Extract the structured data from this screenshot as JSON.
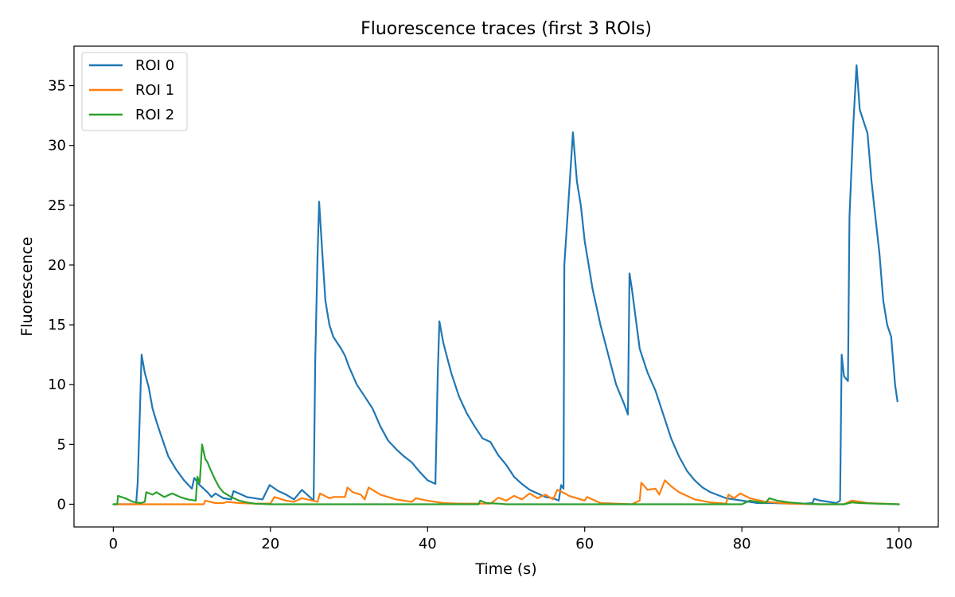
{
  "chart_data": {
    "type": "line",
    "title": "Fluorescence traces (first 3 ROIs)",
    "xlabel": "Time (s)",
    "ylabel": "Fluorescence",
    "xlim": [
      -5,
      105
    ],
    "ylim": [
      -1.9,
      38.3
    ],
    "xticks": [
      0,
      20,
      40,
      60,
      80,
      100
    ],
    "yticks": [
      0,
      5,
      10,
      15,
      20,
      25,
      30,
      35
    ],
    "grid": false,
    "legend_position": "top-left",
    "series": [
      {
        "name": "ROI 0",
        "color": "#1f77b4",
        "points": [
          [
            0,
            0
          ],
          [
            2.9,
            0
          ],
          [
            3.1,
            1.8
          ],
          [
            3.4,
            8
          ],
          [
            3.6,
            12.5
          ],
          [
            4,
            11
          ],
          [
            4.5,
            9.8
          ],
          [
            5,
            8
          ],
          [
            5.5,
            6.9
          ],
          [
            6,
            5.9
          ],
          [
            7,
            4
          ],
          [
            8,
            2.9
          ],
          [
            9,
            2
          ],
          [
            10,
            1.3
          ],
          [
            10.3,
            2.2
          ],
          [
            11,
            1.6
          ],
          [
            12,
            1.0
          ],
          [
            12.5,
            0.6
          ],
          [
            13,
            0.9
          ],
          [
            14,
            0.5
          ],
          [
            15,
            0.4
          ],
          [
            15.3,
            1.1
          ],
          [
            17,
            0.6
          ],
          [
            19,
            0.4
          ],
          [
            19.9,
            1.6
          ],
          [
            21,
            1.1
          ],
          [
            22,
            0.8
          ],
          [
            23,
            0.4
          ],
          [
            24,
            1.2
          ],
          [
            25,
            0.6
          ],
          [
            25.5,
            0.3
          ],
          [
            25.7,
            12
          ],
          [
            26,
            21
          ],
          [
            26.2,
            25.3
          ],
          [
            26.6,
            21
          ],
          [
            27,
            17
          ],
          [
            27.5,
            15
          ],
          [
            28,
            14
          ],
          [
            28.5,
            13.5
          ],
          [
            29,
            13
          ],
          [
            29.5,
            12.4
          ],
          [
            30,
            11.5
          ],
          [
            31,
            10
          ],
          [
            32,
            9
          ],
          [
            33,
            8
          ],
          [
            34,
            6.5
          ],
          [
            35,
            5.3
          ],
          [
            36,
            4.6
          ],
          [
            37,
            4.0
          ],
          [
            38,
            3.5
          ],
          [
            39,
            2.7
          ],
          [
            40,
            2.0
          ],
          [
            41,
            1.7
          ],
          [
            41.3,
            11
          ],
          [
            41.5,
            15.3
          ],
          [
            42,
            13.5
          ],
          [
            43,
            11
          ],
          [
            44,
            9
          ],
          [
            45,
            7.6
          ],
          [
            46,
            6.5
          ],
          [
            47,
            5.5
          ],
          [
            48,
            5.2
          ],
          [
            49,
            4.1
          ],
          [
            50,
            3.3
          ],
          [
            51,
            2.3
          ],
          [
            52,
            1.7
          ],
          [
            53,
            1.2
          ],
          [
            54,
            0.9
          ],
          [
            55,
            0.6
          ],
          [
            56,
            0.5
          ],
          [
            56.7,
            0.3
          ],
          [
            57,
            1.6
          ],
          [
            57.3,
            1.3
          ],
          [
            57.4,
            20
          ],
          [
            58,
            26
          ],
          [
            58.5,
            31.1
          ],
          [
            59,
            27
          ],
          [
            59.5,
            25
          ],
          [
            60,
            22
          ],
          [
            60.5,
            20
          ],
          [
            61,
            18
          ],
          [
            62,
            15
          ],
          [
            63,
            12.5
          ],
          [
            64,
            10
          ],
          [
            65,
            8.4
          ],
          [
            65.5,
            7.5
          ],
          [
            65.7,
            19.3
          ],
          [
            66,
            18
          ],
          [
            66.5,
            15.5
          ],
          [
            67,
            13
          ],
          [
            68,
            11
          ],
          [
            69,
            9.5
          ],
          [
            70,
            7.5
          ],
          [
            71,
            5.5
          ],
          [
            72,
            4
          ],
          [
            73,
            2.8
          ],
          [
            74,
            2
          ],
          [
            75,
            1.4
          ],
          [
            76,
            1.0
          ],
          [
            78,
            0.5
          ],
          [
            80,
            0.3
          ],
          [
            82,
            0.1
          ],
          [
            84,
            0.1
          ],
          [
            86,
            0.05
          ],
          [
            88,
            0.05
          ],
          [
            89,
            0.1
          ],
          [
            89.2,
            0.45
          ],
          [
            90,
            0.3
          ],
          [
            91,
            0.2
          ],
          [
            92,
            0.1
          ],
          [
            92.5,
            0.3
          ],
          [
            92.7,
            12.5
          ],
          [
            93,
            10.7
          ],
          [
            93.5,
            10.3
          ],
          [
            93.7,
            24
          ],
          [
            94.2,
            32
          ],
          [
            94.6,
            36.7
          ],
          [
            95,
            33
          ],
          [
            96,
            31
          ],
          [
            96.5,
            27
          ],
          [
            97,
            24
          ],
          [
            97.5,
            21
          ],
          [
            98,
            17
          ],
          [
            98.5,
            15
          ],
          [
            99,
            14
          ],
          [
            99.5,
            10
          ],
          [
            99.8,
            8.6
          ]
        ]
      },
      {
        "name": "ROI 1",
        "color": "#ff7f0e",
        "points": [
          [
            0,
            0
          ],
          [
            11.5,
            0
          ],
          [
            11.7,
            0.3
          ],
          [
            13,
            0.1
          ],
          [
            14,
            0.1
          ],
          [
            14.5,
            0.2
          ],
          [
            16,
            0.1
          ],
          [
            18,
            0.05
          ],
          [
            20,
            0.05
          ],
          [
            20.5,
            0.6
          ],
          [
            22,
            0.3
          ],
          [
            23,
            0.2
          ],
          [
            24,
            0.5
          ],
          [
            26,
            0.2
          ],
          [
            26.3,
            0.9
          ],
          [
            27.5,
            0.5
          ],
          [
            28,
            0.6
          ],
          [
            29.5,
            0.6
          ],
          [
            29.8,
            1.4
          ],
          [
            30.5,
            1.0
          ],
          [
            31.5,
            0.8
          ],
          [
            32,
            0.4
          ],
          [
            32.5,
            1.4
          ],
          [
            34,
            0.8
          ],
          [
            36,
            0.4
          ],
          [
            38,
            0.2
          ],
          [
            38.5,
            0.5
          ],
          [
            40,
            0.3
          ],
          [
            42,
            0.1
          ],
          [
            44,
            0.05
          ],
          [
            48,
            0.05
          ],
          [
            49,
            0.55
          ],
          [
            50,
            0.3
          ],
          [
            51,
            0.7
          ],
          [
            52,
            0.4
          ],
          [
            53,
            0.9
          ],
          [
            54,
            0.5
          ],
          [
            55,
            0.8
          ],
          [
            56,
            0.4
          ],
          [
            56.5,
            1.2
          ],
          [
            57.5,
            0.9
          ],
          [
            58,
            0.7
          ],
          [
            60,
            0.3
          ],
          [
            60.3,
            0.6
          ],
          [
            62,
            0.1
          ],
          [
            64,
            0.05
          ],
          [
            66,
            0
          ],
          [
            67,
            0.3
          ],
          [
            67.2,
            1.8
          ],
          [
            68,
            1.2
          ],
          [
            69,
            1.3
          ],
          [
            69.5,
            0.8
          ],
          [
            70.2,
            2.0
          ],
          [
            71,
            1.5
          ],
          [
            72,
            1.0
          ],
          [
            74,
            0.4
          ],
          [
            76,
            0.15
          ],
          [
            78,
            0.05
          ],
          [
            78.3,
            0.8
          ],
          [
            79,
            0.5
          ],
          [
            79.8,
            0.9
          ],
          [
            81,
            0.5
          ],
          [
            83,
            0.2
          ],
          [
            86,
            0.05
          ],
          [
            90,
            0
          ],
          [
            93,
            0
          ],
          [
            94,
            0.3
          ],
          [
            95,
            0.2
          ],
          [
            96,
            0.1
          ],
          [
            100,
            0
          ]
        ]
      },
      {
        "name": "ROI 2",
        "color": "#2ca02c",
        "points": [
          [
            0,
            0
          ],
          [
            0.5,
            0
          ],
          [
            0.6,
            0.7
          ],
          [
            1.5,
            0.5
          ],
          [
            2.5,
            0.2
          ],
          [
            3.5,
            0.1
          ],
          [
            4,
            0.2
          ],
          [
            4.2,
            1.0
          ],
          [
            5,
            0.8
          ],
          [
            5.5,
            1.0
          ],
          [
            6.5,
            0.6
          ],
          [
            7.5,
            0.9
          ],
          [
            8.5,
            0.6
          ],
          [
            9.5,
            0.4
          ],
          [
            10.5,
            0.3
          ],
          [
            10.7,
            2.3
          ],
          [
            11,
            1.8
          ],
          [
            11.3,
            5.0
          ],
          [
            11.7,
            3.8
          ],
          [
            12,
            3.5
          ],
          [
            12.3,
            3.0
          ],
          [
            13,
            2.0
          ],
          [
            13.5,
            1.4
          ],
          [
            14,
            1.0
          ],
          [
            15,
            0.6
          ],
          [
            16,
            0.3
          ],
          [
            17,
            0.15
          ],
          [
            18,
            0.05
          ],
          [
            20,
            0
          ],
          [
            30,
            0
          ],
          [
            40,
            0
          ],
          [
            46.5,
            0
          ],
          [
            46.7,
            0.3
          ],
          [
            47.5,
            0.1
          ],
          [
            49,
            0.05
          ],
          [
            50,
            0
          ],
          [
            60,
            0
          ],
          [
            70,
            0
          ],
          [
            80,
            0
          ],
          [
            81,
            0.3
          ],
          [
            82,
            0.2
          ],
          [
            83,
            0.1
          ],
          [
            83.5,
            0.5
          ],
          [
            84.5,
            0.3
          ],
          [
            86,
            0.15
          ],
          [
            88,
            0.05
          ],
          [
            90,
            0
          ],
          [
            93,
            0
          ],
          [
            94,
            0.15
          ],
          [
            95,
            0.1
          ],
          [
            97,
            0.05
          ],
          [
            100,
            0
          ]
        ]
      }
    ]
  }
}
